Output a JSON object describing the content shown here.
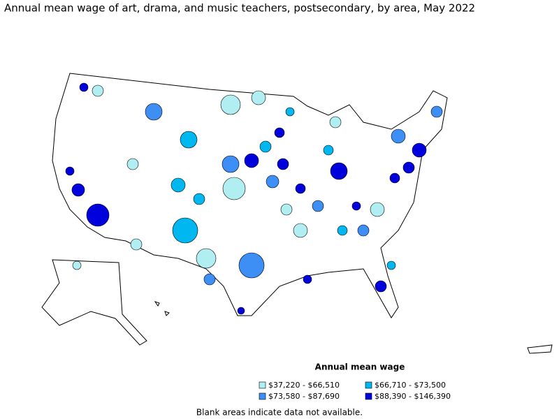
{
  "title": "Annual mean wage of art, drama, and music teachers, postsecondary, by area, May 2022",
  "legend": {
    "title": "Annual mean wage",
    "items": [
      {
        "label": "$37,220 - $66,510",
        "color": "#b0eef2"
      },
      {
        "label": "$66,710 - $73,500",
        "color": "#00b7f0"
      },
      {
        "label": "$73,580 - $87,690",
        "color": "#3d8ef5"
      },
      {
        "label": "$88,390 - $146,390",
        "color": "#0000dc"
      }
    ]
  },
  "note": "Blank areas indicate data not available."
}
